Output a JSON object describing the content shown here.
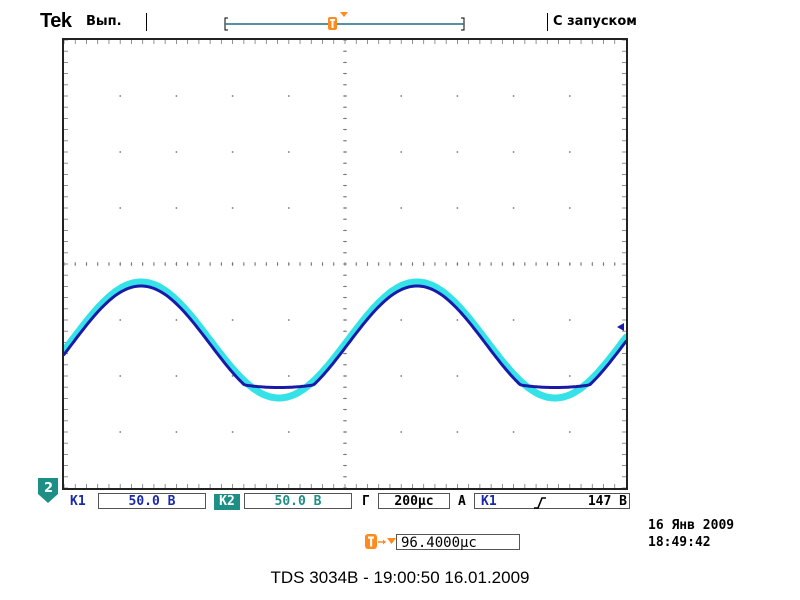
{
  "header": {
    "brand": "Tek",
    "acq_state": "Вып.",
    "trigger_mode": "С запуском"
  },
  "trigger_marker": {
    "label": "T"
  },
  "scope": {
    "grid": {
      "divisions_x": 10,
      "divisions_y": 8
    },
    "colors": {
      "background": "#ffffff",
      "grid": "#777777",
      "ch1": "#1a1aa8",
      "ch2": "#29e0e6",
      "trigger": "#ff8a1e"
    }
  },
  "channel_marker": {
    "label": "2"
  },
  "status_bar": {
    "ch1_label": "K1",
    "ch1_scale": "50.0 В",
    "ch2_label": "K2",
    "ch2_scale": "50.0 В",
    "timebase_label": "Г",
    "timebase_value": "200µс",
    "trigger_label": "A",
    "trigger_source": "K1",
    "trigger_slope_icon": "rising-edge-icon",
    "trigger_level": "147 В"
  },
  "trigger_position": {
    "value": "96.4000µс"
  },
  "datetime": {
    "date": "16 Янв  2009",
    "time": "18:49:42"
  },
  "footer": {
    "caption": "TDS 3034B - 19:00:50   16.01.2009"
  }
}
